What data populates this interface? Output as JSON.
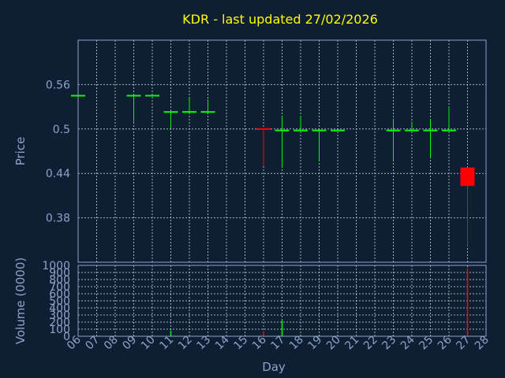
{
  "chart_data": {
    "type": "candlestick",
    "title": "KDR - last updated 27/02/2026",
    "xlabel": "Day",
    "price_panel": {
      "ylabel": "Price",
      "ylim": [
        0.32,
        0.62
      ],
      "yticks": [
        0.38,
        0.44,
        0.5,
        0.56
      ],
      "ytick_labels": [
        "0.38",
        "0.44",
        "0.5",
        "0.56"
      ],
      "grid": true
    },
    "volume_panel": {
      "ylabel": "Volume (0000)",
      "ylim": [
        0,
        1000
      ],
      "yticks": [
        0,
        100,
        200,
        300,
        400,
        500,
        600,
        700,
        800,
        900,
        1000
      ],
      "ytick_labels": [
        "0",
        "100",
        "200",
        "300",
        "400",
        "500",
        "600",
        "700",
        "800",
        "900",
        "1000"
      ],
      "grid": true
    },
    "x_ticks": [
      "06",
      "07",
      "08",
      "09",
      "10",
      "11",
      "12",
      "13",
      "14",
      "15",
      "16",
      "17",
      "18",
      "19",
      "20",
      "21",
      "22",
      "23",
      "24",
      "25",
      "26",
      "27",
      "28"
    ],
    "colors": {
      "background": "#0f1f33",
      "axis": "#8ea2c8",
      "grid": "#c8d2e6",
      "title": "#ffff00",
      "up": "#00ff00",
      "down": "#ff0000"
    },
    "candles": [
      {
        "day": "06",
        "open": 0.545,
        "high": 0.545,
        "low": 0.545,
        "close": 0.545,
        "volume": 0,
        "color": "up"
      },
      {
        "day": "09",
        "open": 0.545,
        "high": 0.545,
        "low": 0.51,
        "close": 0.545,
        "volume": 5,
        "color": "up"
      },
      {
        "day": "10",
        "open": 0.545,
        "high": 0.545,
        "low": 0.545,
        "close": 0.545,
        "volume": 0,
        "color": "up"
      },
      {
        "day": "11",
        "open": 0.523,
        "high": 0.523,
        "low": 0.5,
        "close": 0.523,
        "volume": 80,
        "color": "up"
      },
      {
        "day": "12",
        "open": 0.523,
        "high": 0.542,
        "low": 0.523,
        "close": 0.523,
        "volume": 10,
        "color": "up"
      },
      {
        "day": "13",
        "open": 0.523,
        "high": 0.54,
        "low": 0.523,
        "close": 0.523,
        "volume": 5,
        "color": "up"
      },
      {
        "day": "16",
        "open": 0.5,
        "high": 0.5,
        "low": 0.45,
        "close": 0.5,
        "volume": 70,
        "color": "down"
      },
      {
        "day": "17",
        "open": 0.498,
        "high": 0.518,
        "low": 0.448,
        "close": 0.498,
        "volume": 220,
        "color": "up"
      },
      {
        "day": "18",
        "open": 0.498,
        "high": 0.518,
        "low": 0.498,
        "close": 0.498,
        "volume": 20,
        "color": "up"
      },
      {
        "day": "19",
        "open": 0.498,
        "high": 0.498,
        "low": 0.456,
        "close": 0.498,
        "volume": 20,
        "color": "up"
      },
      {
        "day": "20",
        "open": 0.498,
        "high": 0.498,
        "low": 0.498,
        "close": 0.498,
        "volume": 0,
        "color": "up"
      },
      {
        "day": "23",
        "open": 0.498,
        "high": 0.514,
        "low": 0.456,
        "close": 0.498,
        "volume": 15,
        "color": "up"
      },
      {
        "day": "24",
        "open": 0.498,
        "high": 0.51,
        "low": 0.498,
        "close": 0.498,
        "volume": 15,
        "color": "up"
      },
      {
        "day": "25",
        "open": 0.498,
        "high": 0.512,
        "low": 0.462,
        "close": 0.498,
        "volume": 10,
        "color": "up"
      },
      {
        "day": "26",
        "open": 0.498,
        "high": 0.53,
        "low": 0.498,
        "close": 0.498,
        "volume": 10,
        "color": "up"
      },
      {
        "day": "27",
        "open": 0.448,
        "high": 0.448,
        "low": 0.342,
        "close": 0.423,
        "volume": 960,
        "color": "down"
      }
    ]
  }
}
